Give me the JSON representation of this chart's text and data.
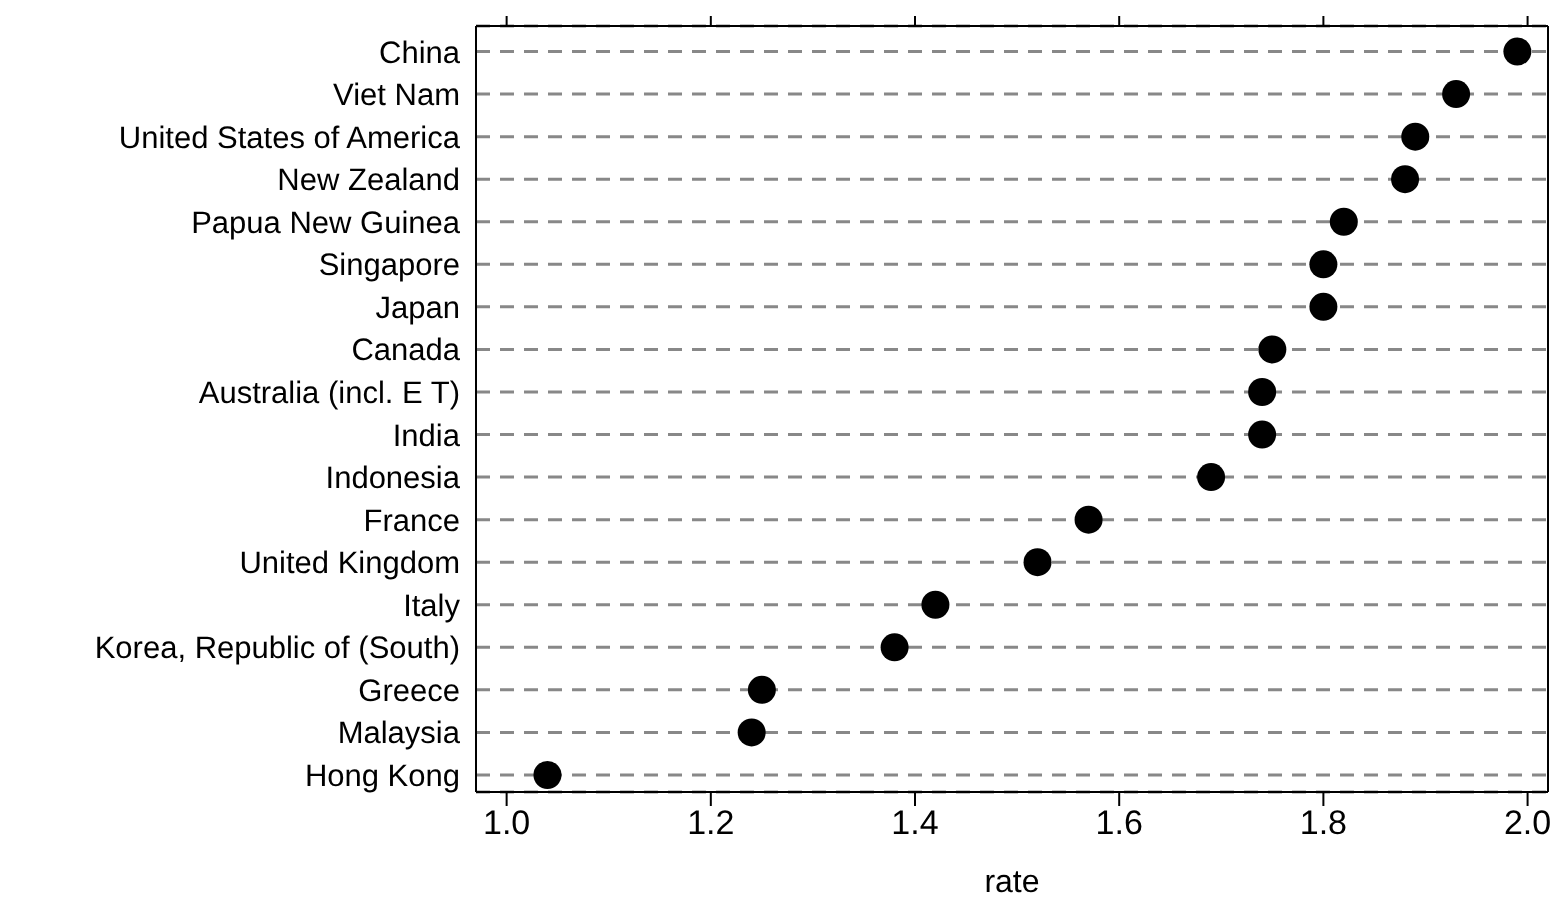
{
  "chart_data": {
    "type": "scatter",
    "xlabel": "rate",
    "categories": [
      "China",
      "Viet Nam",
      "United States of America",
      "New Zealand",
      "Papua New Guinea",
      "Singapore",
      "Japan",
      "Canada",
      "Australia (incl. E T)",
      "India",
      "Indonesia",
      "France",
      "United Kingdom",
      "Italy",
      "Korea, Republic of (South)",
      "Greece",
      "Malaysia",
      "Hong Kong"
    ],
    "values": [
      1.99,
      1.93,
      1.89,
      1.88,
      1.82,
      1.8,
      1.8,
      1.75,
      1.74,
      1.74,
      1.69,
      1.57,
      1.52,
      1.42,
      1.38,
      1.25,
      1.24,
      1.04
    ],
    "color": "#000000",
    "marker": "circle",
    "orientation": "horizontal",
    "xlim": [
      0.97,
      2.02
    ],
    "xticks": [
      {
        "value": 1.0,
        "label": "1.0"
      },
      1.2,
      1.4,
      1.6,
      1.8,
      {
        "value": 2.0,
        "label": "2.0"
      }
    ],
    "grid": "y"
  }
}
